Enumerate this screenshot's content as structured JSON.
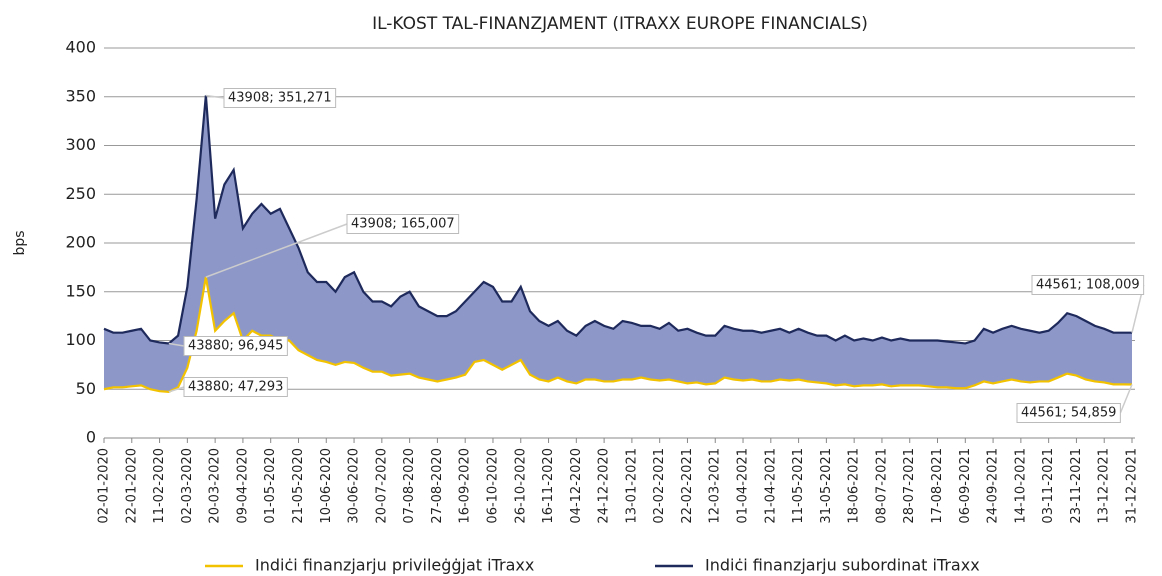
{
  "chart_data": {
    "type": "area",
    "title": "IL-KOST TAL-FINANZJAMENT (ITRAXX EUROPE FINANCIALS)",
    "y_label": "bps",
    "categories": [
      "02-01-2020",
      null,
      null,
      "22-01-2020",
      null,
      null,
      "11-02-2020",
      null,
      null,
      "02-03-2020",
      null,
      null,
      "20-03-2020",
      null,
      null,
      "09-04-2020",
      null,
      null,
      "01-05-2020",
      null,
      null,
      "21-05-2020",
      null,
      null,
      "10-06-2020",
      null,
      null,
      "30-06-2020",
      null,
      null,
      "20-07-2020",
      null,
      null,
      "07-08-2020",
      null,
      null,
      "27-08-2020",
      null,
      null,
      "16-09-2020",
      null,
      null,
      "06-10-2020",
      null,
      null,
      "26-10-2020",
      null,
      null,
      "16-11-2020",
      null,
      null,
      "04-12-2020",
      null,
      null,
      "24-12-2020",
      null,
      null,
      "13-01-2021",
      null,
      null,
      "02-02-2021",
      null,
      null,
      "22-02-2021",
      null,
      null,
      "12-03-2021",
      null,
      null,
      "01-04-2021",
      null,
      null,
      "21-04-2021",
      null,
      null,
      "11-05-2021",
      null,
      null,
      "31-05-2021",
      null,
      null,
      "18-06-2021",
      null,
      null,
      "08-07-2021",
      null,
      null,
      "28-07-2021",
      null,
      null,
      "17-08-2021",
      null,
      null,
      "06-09-2021",
      null,
      null,
      "24-09-2021",
      null,
      null,
      "14-10-2021",
      null,
      null,
      "03-11-2021",
      null,
      null,
      "23-11-2021",
      null,
      null,
      "13-12-2021",
      null,
      null,
      "31-12-2021"
    ],
    "series": [
      {
        "name": "Indiċi finanzjarju privileġġjat iTraxx",
        "color": "#f2c200",
        "values": [
          50,
          52,
          52,
          53,
          54,
          50,
          48,
          47.293,
          52,
          72,
          110,
          165.007,
          110,
          120,
          128,
          100,
          110,
          105,
          105,
          100,
          100,
          90,
          85,
          80,
          78,
          75,
          78,
          77,
          72,
          68,
          68,
          64,
          65,
          66,
          62,
          60,
          58,
          60,
          62,
          65,
          78,
          80,
          75,
          70,
          75,
          80,
          65,
          60,
          58,
          62,
          58,
          56,
          60,
          60,
          58,
          58,
          60,
          60,
          62,
          60,
          59,
          60,
          58,
          56,
          57,
          55,
          56,
          62,
          60,
          59,
          60,
          58,
          58,
          60,
          59,
          60,
          58,
          57,
          56,
          54,
          55,
          53,
          54,
          54,
          55,
          53,
          54,
          54,
          54,
          53,
          52,
          52,
          51,
          51,
          54,
          58,
          56,
          58,
          60,
          58,
          57,
          58,
          58,
          62,
          66,
          64,
          60,
          58,
          57,
          55,
          55,
          54.859
        ]
      },
      {
        "name": "Indiċi finanzjarju subordinat iTraxx",
        "color": "#1f2a5c",
        "values": [
          112,
          108,
          108,
          110,
          112,
          100,
          98,
          96.945,
          105,
          155,
          245,
          351.271,
          225,
          260,
          275,
          215,
          230,
          240,
          230,
          235,
          215,
          195,
          170,
          160,
          160,
          150,
          165,
          170,
          150,
          140,
          140,
          135,
          145,
          150,
          135,
          130,
          125,
          125,
          130,
          140,
          150,
          160,
          155,
          140,
          140,
          155,
          130,
          120,
          115,
          120,
          110,
          105,
          115,
          120,
          115,
          112,
          120,
          118,
          115,
          115,
          112,
          118,
          110,
          112,
          108,
          105,
          105,
          115,
          112,
          110,
          110,
          108,
          110,
          112,
          108,
          112,
          108,
          105,
          105,
          100,
          105,
          100,
          102,
          100,
          103,
          100,
          102,
          100,
          100,
          100,
          100,
          99,
          98,
          97,
          100,
          112,
          108,
          112,
          115,
          112,
          110,
          108,
          110,
          118,
          128,
          125,
          120,
          115,
          112,
          108,
          108,
          108.009
        ]
      }
    ],
    "fill_color": "#8e98c8",
    "annotations": [
      {
        "text": "43908; 351,271"
      },
      {
        "text": "43908; 165,007"
      },
      {
        "text": "43880; 96,945"
      },
      {
        "text": "43880; 47,293"
      },
      {
        "text": "44561; 108,009"
      },
      {
        "text": "44561; 54,859"
      }
    ],
    "ylim": [
      0,
      400
    ],
    "yticks": [
      0,
      50,
      100,
      150,
      200,
      250,
      300,
      350,
      400
    ],
    "grid": true
  }
}
